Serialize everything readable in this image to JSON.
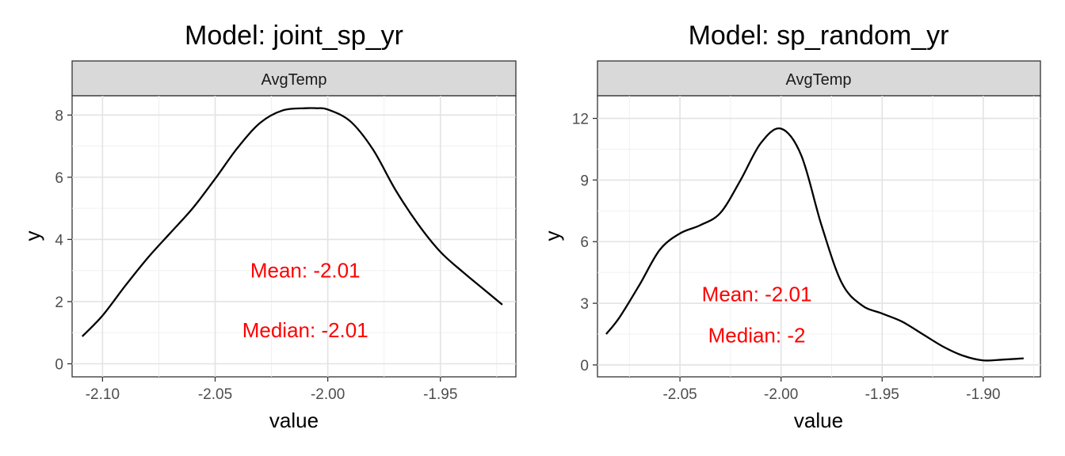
{
  "chart_data": [
    {
      "type": "line",
      "title": "Model: joint_sp_yr",
      "facet": "AvgTemp",
      "xlabel": "value",
      "ylabel": "y",
      "xlim": [
        -2.1135,
        -1.9165
      ],
      "ylim": [
        -0.42,
        8.62
      ],
      "xticks": [
        -2.1,
        -2.05,
        -2.0,
        -1.95
      ],
      "xtick_labels": [
        "-2.10",
        "-2.05",
        "-2.00",
        "-1.95"
      ],
      "yticks": [
        0,
        2,
        4,
        6,
        8
      ],
      "ytick_labels": [
        "0",
        "2",
        "4",
        "6",
        "8"
      ],
      "grid": true,
      "line_color": "#000000",
      "series": [
        {
          "x": [
            -2.109,
            -2.1,
            -2.09,
            -2.08,
            -2.07,
            -2.06,
            -2.05,
            -2.04,
            -2.03,
            -2.02,
            -2.01,
            -2.005,
            -2.0,
            -1.99,
            -1.98,
            -1.97,
            -1.96,
            -1.95,
            -1.94,
            -1.93,
            -1.9225
          ],
          "values": [
            0.88,
            1.55,
            2.5,
            3.4,
            4.2,
            5.0,
            5.95,
            6.95,
            7.75,
            8.15,
            8.22,
            8.22,
            8.18,
            7.8,
            6.9,
            5.6,
            4.5,
            3.6,
            2.95,
            2.35,
            1.9
          ]
        }
      ],
      "annotations": [
        {
          "text": "Mean: -2.01",
          "x": -2.01,
          "y": 3.0,
          "color": "#ff0000"
        },
        {
          "text": "Median: -2.01",
          "x": -2.01,
          "y": 1.08,
          "color": "#ff0000"
        }
      ]
    },
    {
      "type": "line",
      "title": "Model: sp_random_yr",
      "facet": "AvgTemp",
      "xlabel": "value",
      "ylabel": "y",
      "xlim": [
        -2.0908,
        -1.8717
      ],
      "ylim": [
        -0.58,
        13.1
      ],
      "xticks": [
        -2.05,
        -2.0,
        -1.95,
        -1.9
      ],
      "xtick_labels": [
        "-2.05",
        "-2.00",
        "-1.95",
        "-1.90"
      ],
      "yticks": [
        0,
        3,
        6,
        9,
        12
      ],
      "ytick_labels": [
        "0",
        "3",
        "6",
        "9",
        "12"
      ],
      "grid": true,
      "line_color": "#000000",
      "series": [
        {
          "x": [
            -2.0865,
            -2.08,
            -2.07,
            -2.06,
            -2.05,
            -2.04,
            -2.03,
            -2.02,
            -2.01,
            -2.0,
            -1.99,
            -1.98,
            -1.97,
            -1.96,
            -1.95,
            -1.94,
            -1.93,
            -1.92,
            -1.91,
            -1.9,
            -1.89,
            -1.88
          ],
          "values": [
            1.5,
            2.3,
            3.9,
            5.6,
            6.4,
            6.8,
            7.4,
            9.0,
            10.8,
            11.5,
            10.2,
            6.8,
            4.0,
            2.9,
            2.5,
            2.1,
            1.5,
            0.9,
            0.45,
            0.22,
            0.26,
            0.32
          ]
        }
      ],
      "annotations": [
        {
          "text": "Mean: -2.01",
          "x": -2.012,
          "y": 3.45,
          "color": "#ff0000"
        },
        {
          "text": "Median: -2",
          "x": -2.012,
          "y": 1.45,
          "color": "#ff0000"
        }
      ]
    }
  ]
}
